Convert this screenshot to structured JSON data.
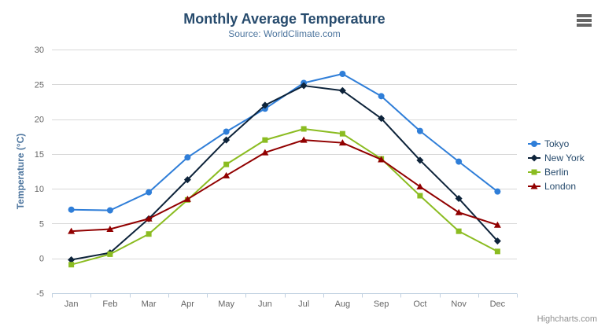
{
  "header": {
    "title": "Monthly Average Temperature",
    "subtitle": "Source: WorldClimate.com"
  },
  "credit": "Highcharts.com",
  "menu": {
    "icon": "hamburger-icon"
  },
  "chart_data": {
    "type": "line",
    "title": "Monthly Average Temperature",
    "subtitle": "Source: WorldClimate.com",
    "xlabel": "",
    "ylabel": "Temperature (°C)",
    "categories": [
      "Jan",
      "Feb",
      "Mar",
      "Apr",
      "May",
      "Jun",
      "Jul",
      "Aug",
      "Sep",
      "Oct",
      "Nov",
      "Dec"
    ],
    "ylim": [
      -5,
      30
    ],
    "yticks": [
      -5,
      0,
      5,
      10,
      15,
      20,
      25,
      30
    ],
    "grid": true,
    "legend_position": "right",
    "series": [
      {
        "name": "Tokyo",
        "color": "#2f7ed8",
        "marker": "circle",
        "values": [
          7.0,
          6.9,
          9.5,
          14.5,
          18.2,
          21.5,
          25.2,
          26.5,
          23.3,
          18.3,
          13.9,
          9.6
        ]
      },
      {
        "name": "New York",
        "color": "#0d233a",
        "marker": "diamond",
        "values": [
          -0.2,
          0.8,
          5.7,
          11.3,
          17.0,
          22.0,
          24.8,
          24.1,
          20.1,
          14.1,
          8.6,
          2.5
        ]
      },
      {
        "name": "Berlin",
        "color": "#8bbc21",
        "marker": "square",
        "values": [
          -0.9,
          0.6,
          3.5,
          8.4,
          13.5,
          17.0,
          18.6,
          17.9,
          14.3,
          9.0,
          3.9,
          1.0
        ]
      },
      {
        "name": "London",
        "color": "#910000",
        "marker": "triangle",
        "values": [
          3.9,
          4.2,
          5.7,
          8.5,
          11.9,
          15.2,
          17.0,
          16.6,
          14.2,
          10.3,
          6.6,
          4.8
        ]
      }
    ],
    "styles": {
      "grid_color": "#d8d8d8",
      "axis_line_color": "#c0d0e0",
      "tick_label_color": "#666666",
      "axis_title_color": "#4d759e",
      "legend_text_color": "#274b6d"
    }
  }
}
